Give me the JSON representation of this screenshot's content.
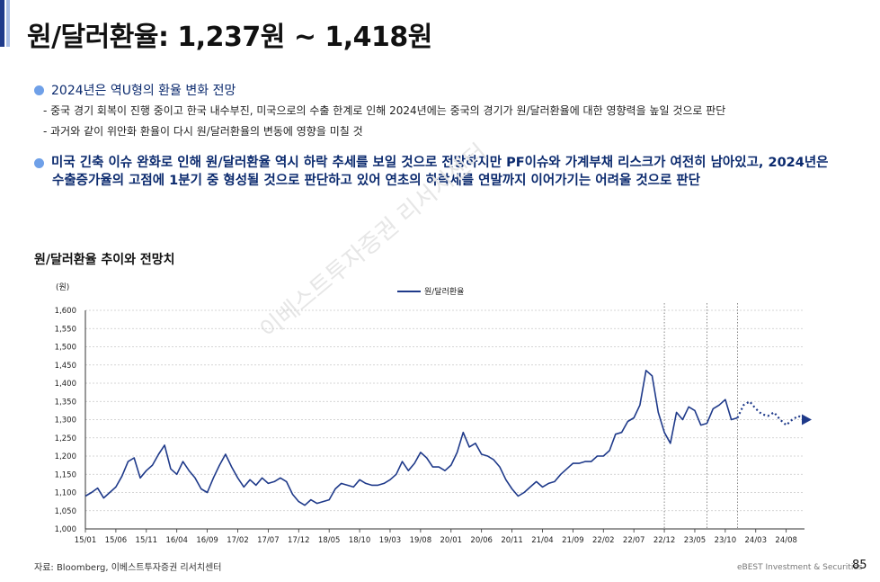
{
  "header": {
    "title": "원/달러환율: 1,237원 ~ 1,418원"
  },
  "bullets": {
    "b1_head": "2024년은 역U형의 환율 변화 전망",
    "b1_sub1": "- 중국 경기 회복이 진행 중이고 한국 내수부진, 미국으로의 수출 한계로 인해 2024년에는 중국의 경기가 원/달러환율에 대한 영향력을 높일 것으로 판단",
    "b1_sub2": "- 과거와 같이 위안화 환율이 다시 원/달러환율의 변동에 영향을 미칠 것",
    "b2_line1": "미국 긴축 이슈 완화로 인해 원/달러환율 역시 하락 추세를 보일 것으로 전망하지만 PF이슈와 가계부채 리스크가 여전히 남아있고, 2024년은",
    "b2_line2": "수출증가율의 고점에 1분기 중 형성될 것으로 판단하고 있어 연초의 하락세를 연말까지 이어가기는 어려울 것으로 판단"
  },
  "chart_section": {
    "title": "원/달러환율 추이와 전망치",
    "source": "자료: Bloomberg, 이베스트투자증권 리서치센터",
    "watermark": "이베스트투자증권 리서치센터"
  },
  "footer": {
    "company": "eBEST Investment & Securities",
    "page": "85"
  },
  "colors": {
    "series": "#1f3a8a",
    "accent_dark": "#1f3a8a",
    "accent_light": "#a9bde6",
    "bullet_dot": "#6fa0e8",
    "bullet_text": "#0b2a6e"
  },
  "chart_data": {
    "type": "line",
    "ylabel": "(원)",
    "ylim": [
      1000,
      1600
    ],
    "yticks": [
      1000,
      1050,
      1100,
      1150,
      1200,
      1250,
      1300,
      1350,
      1400,
      1450,
      1500,
      1550,
      1600
    ],
    "ytick_labels": [
      "1,000",
      "1,050",
      "1,100",
      "1,150",
      "1,200",
      "1,250",
      "1,300",
      "1,350",
      "1,400",
      "1,450",
      "1,500",
      "1,550",
      "1,600"
    ],
    "xticks": [
      "15/01",
      "15/06",
      "15/11",
      "16/04",
      "16/09",
      "17/02",
      "17/07",
      "17/12",
      "18/05",
      "18/10",
      "19/03",
      "19/08",
      "20/01",
      "20/06",
      "20/11",
      "21/04",
      "21/09",
      "22/02",
      "22/07",
      "22/12",
      "23/05",
      "23/10",
      "24/03",
      "24/08"
    ],
    "xlim": [
      "2015-01",
      "2024-11"
    ],
    "grid": "horizontal dashed",
    "legend": "top-center",
    "forecast_dividers": [
      "2022-12",
      "2023-07",
      "2023-12"
    ],
    "series": [
      {
        "name": "원/달러환율",
        "style": "solid",
        "points": [
          [
            "2015-01",
            1090
          ],
          [
            "2015-02",
            1100
          ],
          [
            "2015-03",
            1112
          ],
          [
            "2015-04",
            1085
          ],
          [
            "2015-05",
            1100
          ],
          [
            "2015-06",
            1115
          ],
          [
            "2015-07",
            1145
          ],
          [
            "2015-08",
            1185
          ],
          [
            "2015-09",
            1195
          ],
          [
            "2015-10",
            1140
          ],
          [
            "2015-11",
            1160
          ],
          [
            "2015-12",
            1175
          ],
          [
            "2016-01",
            1205
          ],
          [
            "2016-02",
            1230
          ],
          [
            "2016-03",
            1165
          ],
          [
            "2016-04",
            1150
          ],
          [
            "2016-05",
            1185
          ],
          [
            "2016-06",
            1160
          ],
          [
            "2016-07",
            1140
          ],
          [
            "2016-08",
            1110
          ],
          [
            "2016-09",
            1100
          ],
          [
            "2016-10",
            1140
          ],
          [
            "2016-11",
            1175
          ],
          [
            "2016-12",
            1205
          ],
          [
            "2017-01",
            1170
          ],
          [
            "2017-02",
            1140
          ],
          [
            "2017-03",
            1115
          ],
          [
            "2017-04",
            1135
          ],
          [
            "2017-05",
            1120
          ],
          [
            "2017-06",
            1140
          ],
          [
            "2017-07",
            1125
          ],
          [
            "2017-08",
            1130
          ],
          [
            "2017-09",
            1140
          ],
          [
            "2017-10",
            1130
          ],
          [
            "2017-11",
            1095
          ],
          [
            "2017-12",
            1075
          ],
          [
            "2018-01",
            1065
          ],
          [
            "2018-02",
            1080
          ],
          [
            "2018-03",
            1070
          ],
          [
            "2018-04",
            1075
          ],
          [
            "2018-05",
            1080
          ],
          [
            "2018-06",
            1110
          ],
          [
            "2018-07",
            1125
          ],
          [
            "2018-08",
            1120
          ],
          [
            "2018-09",
            1115
          ],
          [
            "2018-10",
            1135
          ],
          [
            "2018-11",
            1125
          ],
          [
            "2018-12",
            1120
          ],
          [
            "2019-01",
            1120
          ],
          [
            "2019-02",
            1125
          ],
          [
            "2019-03",
            1135
          ],
          [
            "2019-04",
            1150
          ],
          [
            "2019-05",
            1185
          ],
          [
            "2019-06",
            1160
          ],
          [
            "2019-07",
            1180
          ],
          [
            "2019-08",
            1210
          ],
          [
            "2019-09",
            1195
          ],
          [
            "2019-10",
            1170
          ],
          [
            "2019-11",
            1170
          ],
          [
            "2019-12",
            1160
          ],
          [
            "2020-01",
            1175
          ],
          [
            "2020-02",
            1210
          ],
          [
            "2020-03",
            1265
          ],
          [
            "2020-04",
            1225
          ],
          [
            "2020-05",
            1235
          ],
          [
            "2020-06",
            1205
          ],
          [
            "2020-07",
            1200
          ],
          [
            "2020-08",
            1190
          ],
          [
            "2020-09",
            1170
          ],
          [
            "2020-10",
            1135
          ],
          [
            "2020-11",
            1110
          ],
          [
            "2020-12",
            1090
          ],
          [
            "2021-01",
            1100
          ],
          [
            "2021-02",
            1115
          ],
          [
            "2021-03",
            1130
          ],
          [
            "2021-04",
            1115
          ],
          [
            "2021-05",
            1125
          ],
          [
            "2021-06",
            1130
          ],
          [
            "2021-07",
            1150
          ],
          [
            "2021-08",
            1165
          ],
          [
            "2021-09",
            1180
          ],
          [
            "2021-10",
            1180
          ],
          [
            "2021-11",
            1185
          ],
          [
            "2021-12",
            1185
          ],
          [
            "2022-01",
            1200
          ],
          [
            "2022-02",
            1200
          ],
          [
            "2022-03",
            1215
          ],
          [
            "2022-04",
            1260
          ],
          [
            "2022-05",
            1265
          ],
          [
            "2022-06",
            1295
          ],
          [
            "2022-07",
            1305
          ],
          [
            "2022-08",
            1340
          ],
          [
            "2022-09",
            1435
          ],
          [
            "2022-10",
            1420
          ],
          [
            "2022-11",
            1320
          ],
          [
            "2022-12",
            1265
          ],
          [
            "2023-01",
            1235
          ],
          [
            "2023-02",
            1320
          ],
          [
            "2023-03",
            1300
          ],
          [
            "2023-04",
            1335
          ],
          [
            "2023-05",
            1325
          ],
          [
            "2023-06",
            1285
          ],
          [
            "2023-07",
            1290
          ],
          [
            "2023-08",
            1330
          ],
          [
            "2023-09",
            1340
          ],
          [
            "2023-10",
            1355
          ],
          [
            "2023-11",
            1300
          ],
          [
            "2023-12",
            1305
          ]
        ]
      },
      {
        "name": "",
        "style": "dotted-forecast",
        "points": [
          [
            "2023-12",
            1305
          ],
          [
            "2024-01",
            1340
          ],
          [
            "2024-02",
            1350
          ],
          [
            "2024-03",
            1330
          ],
          [
            "2024-04",
            1315
          ],
          [
            "2024-05",
            1310
          ],
          [
            "2024-06",
            1320
          ],
          [
            "2024-07",
            1300
          ],
          [
            "2024-08",
            1285
          ],
          [
            "2024-09",
            1300
          ],
          [
            "2024-10",
            1310
          ],
          [
            "2024-11",
            1300
          ]
        ]
      }
    ]
  }
}
